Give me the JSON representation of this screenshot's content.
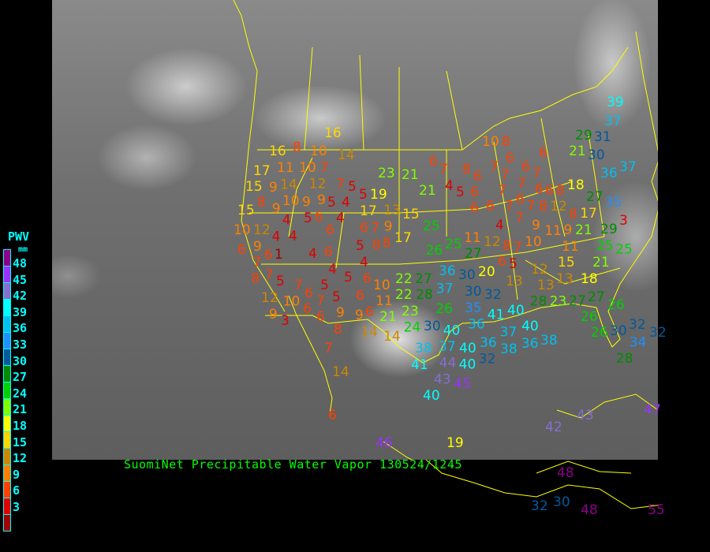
{
  "caption": "SuomiNet Precipitable Water Vapor 130524/1245",
  "legend": {
    "title": "PWV",
    "unit": "mm",
    "labels": [
      "48",
      "45",
      "42",
      "39",
      "36",
      "33",
      "30",
      "27",
      "24",
      "21",
      "18",
      "15",
      "12",
      "9",
      "6",
      "3"
    ],
    "colors": [
      "#8b008b",
      "#9932ff",
      "#8470d0",
      "#00ffff",
      "#00c0f0",
      "#1e90ff",
      "#005a9c",
      "#008c00",
      "#00d000",
      "#80ff00",
      "#ffff00",
      "#ffd700",
      "#cc8800",
      "#ff8000",
      "#ff4000",
      "#e00000",
      "#a00000"
    ]
  },
  "map": {
    "background": "grayscale satellite imagery",
    "border_color": "#ffff00"
  },
  "stations": [
    "16",
    "16",
    "8",
    "10",
    "14",
    "11",
    "10",
    "7",
    "17",
    "14",
    "12",
    "15",
    "9",
    "10",
    "9",
    "9",
    "9",
    "6",
    "5",
    "7",
    "5",
    "4",
    "5",
    "19",
    "17",
    "13",
    "15",
    "15",
    "8",
    "4",
    "5",
    "4",
    "6",
    "7",
    "6",
    "9",
    "8",
    "8",
    "17",
    "10",
    "12",
    "4",
    "4",
    "9",
    "6",
    "6",
    "1",
    "4",
    "6",
    "5",
    "4",
    "4",
    "5",
    "6",
    "7",
    "7",
    "8",
    "5",
    "7",
    "12",
    "10",
    "6",
    "5",
    "5",
    "6",
    "10",
    "11",
    "6",
    "7",
    "9",
    "9",
    "6",
    "3",
    "6",
    "8",
    "9",
    "21",
    "14",
    "14",
    "7",
    "14",
    "6",
    "22",
    "27",
    "22",
    "28",
    "23",
    "24",
    "30",
    "26",
    "37",
    "36",
    "30",
    "30",
    "20",
    "40",
    "37",
    "38",
    "44",
    "41",
    "43",
    "40",
    "40",
    "40",
    "45",
    "35",
    "32",
    "36",
    "41",
    "40",
    "36",
    "32",
    "37",
    "38",
    "40",
    "36",
    "38",
    "25",
    "25",
    "26",
    "27",
    "11",
    "12",
    "8",
    "6",
    "7",
    "4",
    "5",
    "13",
    "12",
    "13",
    "13",
    "15",
    "18",
    "11",
    "10",
    "11",
    "9",
    "28",
    "23",
    "27",
    "27",
    "26",
    "26",
    "26",
    "30",
    "32",
    "34",
    "28",
    "32",
    "21",
    "25",
    "29",
    "25",
    "42",
    "43",
    "47",
    "46",
    "19",
    "48",
    "32",
    "30",
    "48",
    "55",
    "6",
    "7",
    "21",
    "23",
    "21",
    "4",
    "5",
    "8",
    "6",
    "6",
    "6",
    "6",
    "10",
    "8",
    "6",
    "6",
    "7",
    "7",
    "7",
    "7",
    "7",
    "6",
    "6",
    "8",
    "6",
    "7",
    "7",
    "7",
    "8",
    "12",
    "8",
    "9",
    "6",
    "21",
    "29",
    "31",
    "30",
    "39",
    "37",
    "36",
    "37",
    "18",
    "27",
    "35",
    "17",
    "21",
    "3"
  ]
}
